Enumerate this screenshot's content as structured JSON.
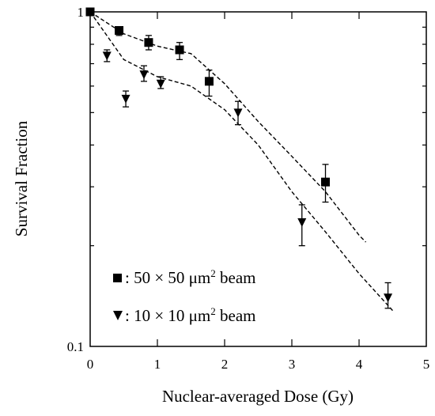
{
  "chart_data": {
    "type": "scatter",
    "title": "",
    "xlabel": "Nuclear-averaged Dose (Gy)",
    "ylabel": "Survival Fraction",
    "xlim": [
      0,
      5
    ],
    "ylim": [
      0.1,
      1
    ],
    "yscale": "log",
    "grid": false,
    "legend_placement": "bottom-left",
    "x_ticks": [
      0,
      1,
      2,
      3,
      4,
      5
    ],
    "x_tick_labels": [
      "0",
      "1",
      "2",
      "3",
      "4",
      "5"
    ],
    "y_tick_labels": [
      {
        "value": 1,
        "label": "1"
      },
      {
        "value": 0.1,
        "label": "0.1"
      }
    ],
    "series": [
      {
        "legend_prefix": ": 50 × 50 μm",
        "legend_sup": "2",
        "legend_suffix": " beam",
        "marker": "square",
        "x": [
          0,
          0.43,
          0.87,
          1.33,
          1.77,
          3.5
        ],
        "y": [
          1.0,
          0.88,
          0.81,
          0.77,
          0.62,
          0.31
        ],
        "err_low": [
          1.0,
          0.85,
          0.77,
          0.72,
          0.56,
          0.27
        ],
        "err_high": [
          1.0,
          0.9,
          0.85,
          0.81,
          0.67,
          0.35
        ],
        "fit": {
          "x": [
            0,
            0.5,
            1.0,
            1.5,
            2.0,
            2.5,
            3.0,
            3.5,
            4.0,
            4.1
          ],
          "y": [
            1.0,
            0.86,
            0.79,
            0.75,
            0.61,
            0.47,
            0.37,
            0.29,
            0.215,
            0.205
          ]
        }
      },
      {
        "legend_prefix": ": 10 × 10 μm",
        "legend_sup": "2",
        "legend_suffix": " beam",
        "marker": "triangle-down",
        "x": [
          0.25,
          0.53,
          0.8,
          1.05,
          2.2,
          3.15,
          4.43
        ],
        "y": [
          0.74,
          0.55,
          0.65,
          0.61,
          0.5,
          0.235,
          0.14
        ],
        "err_low": [
          0.71,
          0.52,
          0.62,
          0.59,
          0.46,
          0.2,
          0.13
        ],
        "err_high": [
          0.77,
          0.58,
          0.69,
          0.64,
          0.54,
          0.265,
          0.155
        ],
        "fit": {
          "x": [
            0,
            0.5,
            1.0,
            1.5,
            2.0,
            2.5,
            3.0,
            3.5,
            4.0,
            4.5
          ],
          "y": [
            1.0,
            0.72,
            0.64,
            0.6,
            0.51,
            0.4,
            0.29,
            0.22,
            0.165,
            0.128
          ]
        }
      }
    ]
  }
}
